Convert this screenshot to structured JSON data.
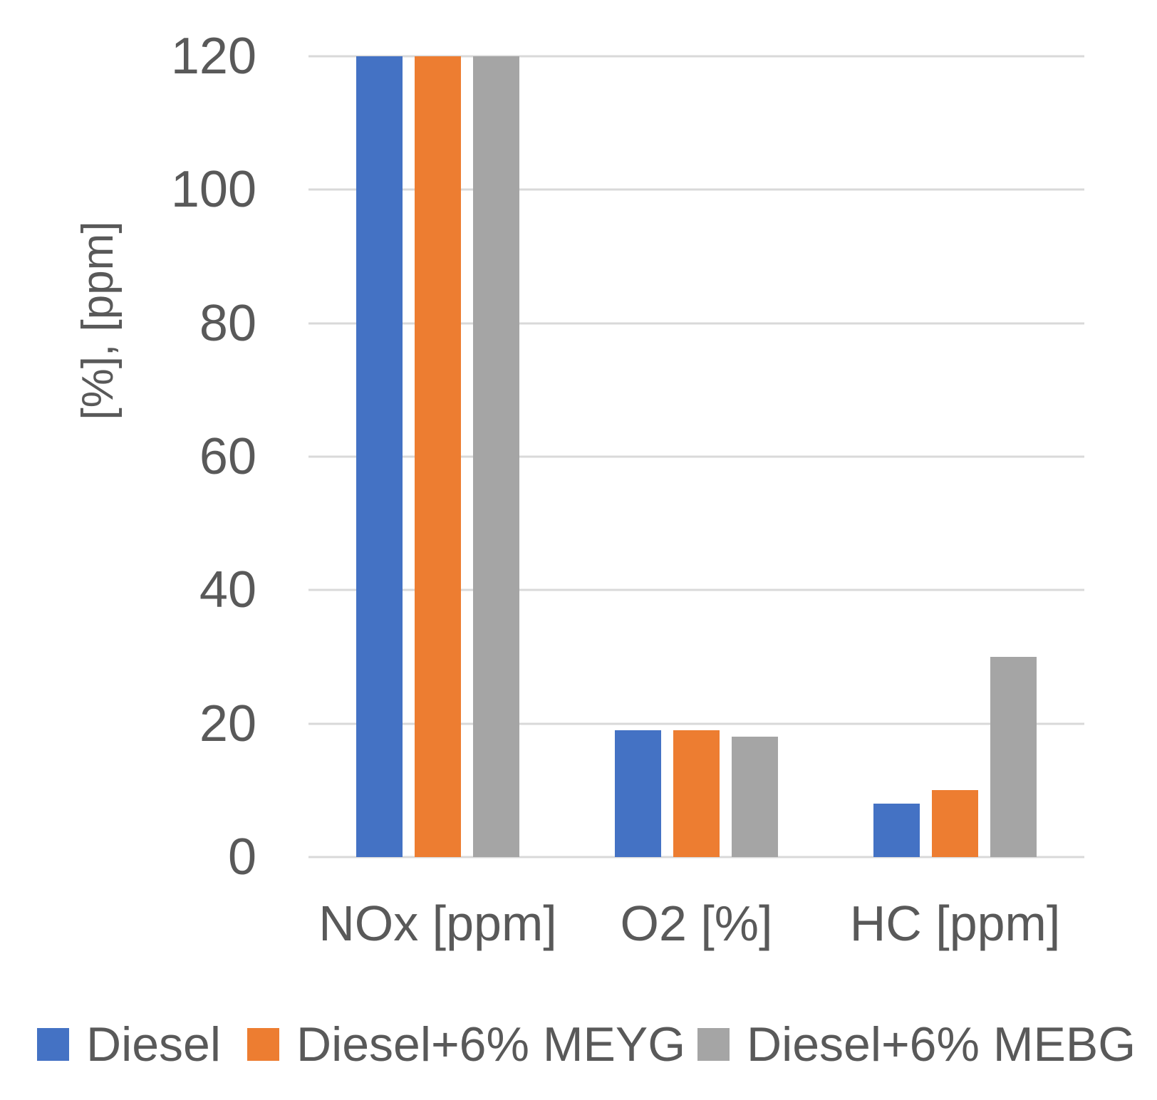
{
  "chart_data": {
    "type": "bar",
    "title": "",
    "categories": [
      "NOx [ppm]",
      "O2 [%]",
      "HC [ppm]"
    ],
    "series": [
      {
        "name": "Diesel",
        "color": "#4472C4",
        "values": [
          120,
          19,
          8
        ]
      },
      {
        "name": "Diesel+6% MEYG",
        "color": "#ED7D31",
        "values": [
          120,
          19,
          10
        ]
      },
      {
        "name": "Diesel+6% MEBG",
        "color": "#A5A5A5",
        "values": [
          120,
          18,
          30
        ]
      }
    ],
    "xlabel": "",
    "ylabel": "[%], [ppm]",
    "ylim": [
      0,
      120
    ],
    "yticks": [
      0,
      20,
      40,
      60,
      80,
      100,
      120
    ],
    "grid": true,
    "legend_position": "bottom",
    "colors": {
      "text": "#595959",
      "gridline": "#D9D9D9",
      "background": "#FFFFFF"
    }
  }
}
